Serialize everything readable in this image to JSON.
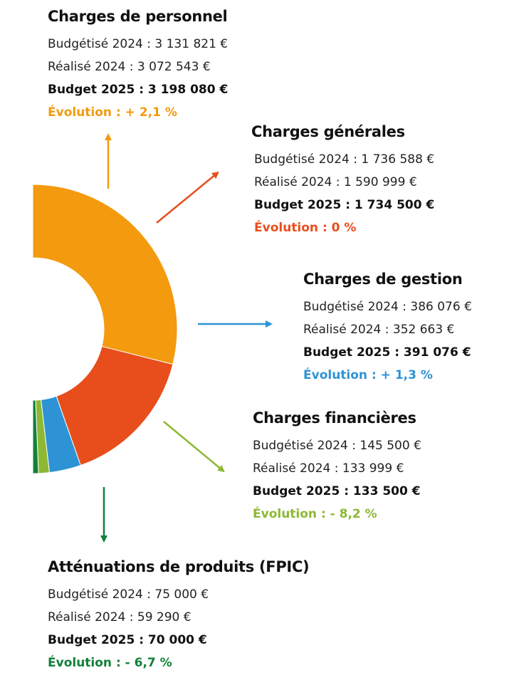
{
  "chart_data": {
    "type": "pie",
    "title": "",
    "categories": [
      "Charges de personnel",
      "Charges générales",
      "Charges de gestion",
      "Charges financières",
      "Atténuations de produits (FPIC)"
    ],
    "values": [
      3198080,
      1734500,
      391076,
      133500,
      70000
    ],
    "colors": [
      "#F39A0E",
      "#E84E1B",
      "#2D93D4",
      "#8DB833",
      "#11803A"
    ],
    "donut": true
  },
  "blocks": {
    "personnel": {
      "title": "Charges de personnel",
      "budgetise": "Budgétisé 2024 : 3 131 821 €",
      "realise": "Réalisé 2024 : 3 072 543 €",
      "budget": "Budget 2025 : 3 198 080 €",
      "evolution": "Évolution : + 2,1 %",
      "color": "#F39A0E"
    },
    "generales": {
      "title": "Charges générales",
      "budgetise": "Budgétisé 2024 : 1 736 588 €",
      "realise": "Réalisé 2024 : 1 590 999 €",
      "budget": "Budget 2025 : 1 734 500 €",
      "evolution": "Évolution : 0 %",
      "color": "#E84E1B"
    },
    "gestion": {
      "title": "Charges de gestion",
      "budgetise": "Budgétisé 2024 : 386 076 €",
      "realise": "Réalisé 2024 : 352 663 €",
      "budget": "Budget 2025 : 391 076 €",
      "evolution": "Évolution : + 1,3 %",
      "color": "#2D93D4"
    },
    "financieres": {
      "title": "Charges financières",
      "budgetise": "Budgétisé 2024 : 145 500 €",
      "realise": "Réalisé 2024 : 133 999 €",
      "budget": "Budget 2025 : 133 500 €",
      "evolution": "Évolution : - 8,2 %",
      "color": "#8DB833"
    },
    "fpic": {
      "title": "Atténuations de produits (FPIC)",
      "budgetise": "Budgétisé 2024 : 75 000 €",
      "realise": "Réalisé 2024 : 59 290 €",
      "budget": "Budget 2025 : 70 000 €",
      "evolution": "Évolution : - 6,7 %",
      "color": "#11803A"
    }
  }
}
